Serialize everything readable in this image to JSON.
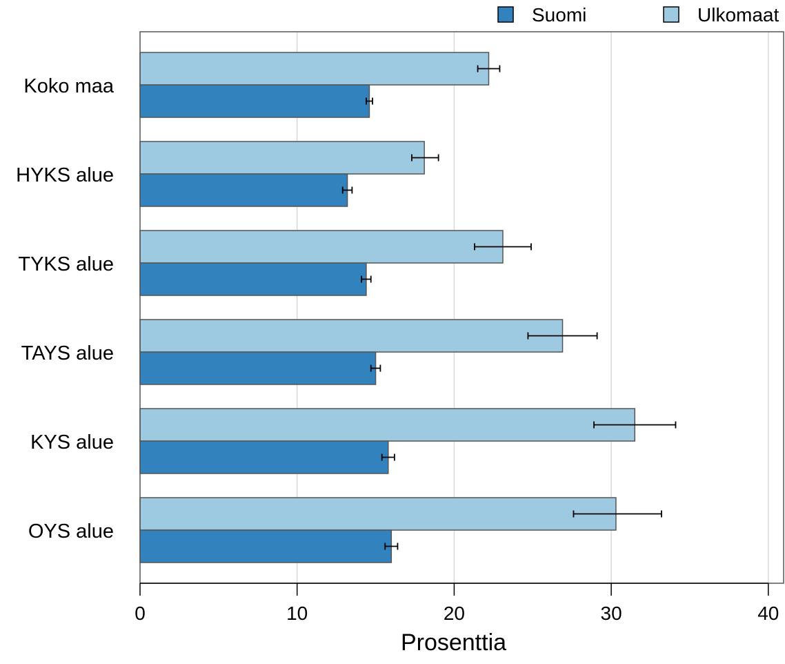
{
  "chart_data": {
    "type": "bar",
    "orientation": "horizontal",
    "title": "",
    "xlabel": "Prosenttia",
    "ylabel": "",
    "xlim": [
      0,
      41
    ],
    "xticks": [
      0,
      10,
      20,
      30,
      40
    ],
    "xtick_labels": [
      "0",
      "10",
      "20",
      "30",
      "40"
    ],
    "grid": "vertical",
    "legend_position": "top-right",
    "error_bars": true,
    "categories": [
      "Koko maa",
      "HYKS alue",
      "TYKS alue",
      "TAYS alue",
      "KYS alue",
      "OYS alue"
    ],
    "series": [
      {
        "name": "Suomi",
        "color": "#3182bd",
        "values": [
          14.6,
          13.2,
          14.4,
          15.0,
          15.8,
          16.0
        ],
        "error_low": [
          14.4,
          12.9,
          14.1,
          14.7,
          15.4,
          15.6
        ],
        "error_high": [
          14.8,
          13.5,
          14.7,
          15.3,
          16.2,
          16.4
        ]
      },
      {
        "name": "Ulkomaat",
        "color": "#9ecae1",
        "values": [
          22.2,
          18.1,
          23.1,
          26.9,
          31.5,
          30.3
        ],
        "error_low": [
          21.5,
          17.3,
          21.3,
          24.7,
          28.9,
          27.6
        ],
        "error_high": [
          22.9,
          19.0,
          24.9,
          29.1,
          34.1,
          33.2
        ]
      }
    ]
  }
}
